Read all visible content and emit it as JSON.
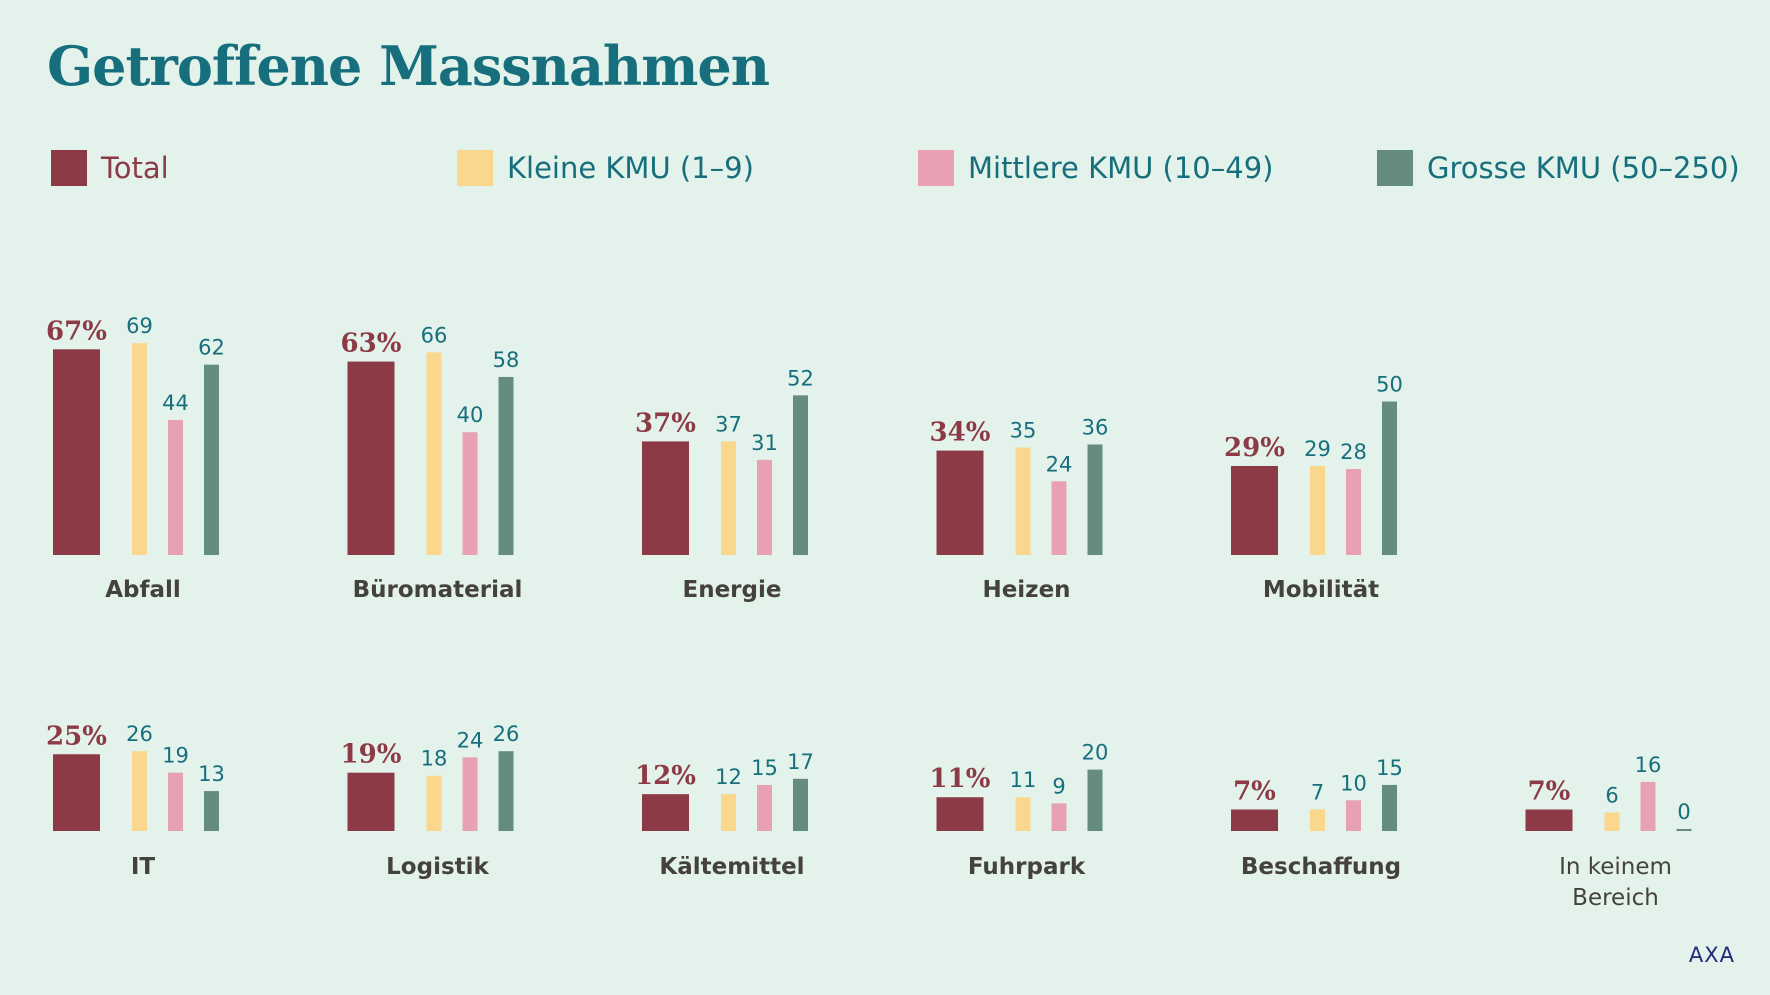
{
  "title": "Getroffene Massnahmen",
  "footer": "AXA",
  "legend": [
    {
      "label": "Total",
      "color": "#8c3a45"
    },
    {
      "label": "Kleine KMU (1–9)",
      "color": "#fbd78e"
    },
    {
      "label": "Mittlere KMU (10–49)",
      "color": "#e8a1b2"
    },
    {
      "label": "Grosse KMU (50–250)",
      "color": "#668c82"
    }
  ],
  "chart_data": {
    "type": "bar",
    "grid": false,
    "legend_position": "top",
    "series_names": [
      "Total",
      "Kleine KMU (1–9)",
      "Mittlere KMU (10–49)",
      "Grosse KMU (50–250)"
    ],
    "groups": [
      {
        "category": "Abfall",
        "total_label": "67%",
        "values": [
          67,
          69,
          44,
          62
        ]
      },
      {
        "category": "Büromaterial",
        "total_label": "63%",
        "values": [
          63,
          66,
          40,
          58
        ]
      },
      {
        "category": "Energie",
        "total_label": "37%",
        "values": [
          37,
          37,
          31,
          52
        ]
      },
      {
        "category": "Heizen",
        "total_label": "34%",
        "values": [
          34,
          35,
          24,
          36
        ]
      },
      {
        "category": "Mobilität",
        "total_label": "29%",
        "values": [
          29,
          29,
          28,
          50
        ]
      },
      {
        "category": "IT",
        "total_label": "25%",
        "values": [
          25,
          26,
          19,
          13
        ]
      },
      {
        "category": "Logistik",
        "total_label": "19%",
        "values": [
          19,
          18,
          24,
          26
        ]
      },
      {
        "category": "Kältemittel",
        "total_label": "12%",
        "values": [
          12,
          12,
          15,
          17
        ]
      },
      {
        "category": "Fuhrpark",
        "total_label": "11%",
        "values": [
          11,
          11,
          9,
          20
        ]
      },
      {
        "category": "Beschaffung",
        "total_label": "7%",
        "values": [
          7,
          7,
          10,
          15
        ]
      },
      {
        "category": "In keinem Bereich",
        "category_lines": [
          "In keinem",
          "Bereich"
        ],
        "total_label": "7%",
        "values": [
          7,
          6,
          16,
          0
        ]
      }
    ]
  }
}
